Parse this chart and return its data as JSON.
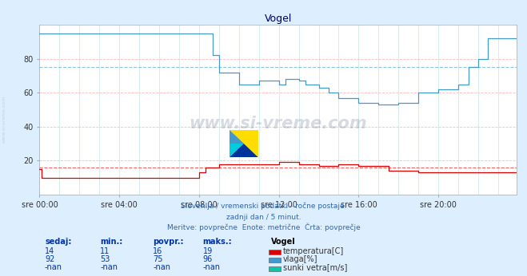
{
  "title": "Vogel",
  "bg_color": "#ddeeff",
  "plot_bg_color": "#ffffff",
  "xlabel_times": [
    "sre 00:00",
    "sre 04:00",
    "sre 08:00",
    "sre 12:00",
    "sre 16:00",
    "sre 20:00"
  ],
  "ylim": [
    0,
    100
  ],
  "xlim": [
    0,
    287
  ],
  "subtitle1": "Slovenija / vremenski podatki - ročne postaje.",
  "subtitle2": "zadnji dan / 5 minut.",
  "subtitle3": "Meritve: povprečne  Enote: metrične  Črta: povprečje",
  "table_headers": [
    "sedaj:",
    "min.:",
    "povpr.:",
    "maks.:"
  ],
  "table_data": [
    [
      "14",
      "11",
      "16",
      "19"
    ],
    [
      "92",
      "53",
      "75",
      "96"
    ],
    [
      "-nan",
      "-nan",
      "-nan",
      "-nan"
    ]
  ],
  "legend_station": "Vogel",
  "legend_items": [
    {
      "label": "temperatura[C]",
      "color": "#dd0000"
    },
    {
      "label": "vlaga[%]",
      "color": "#4499cc"
    },
    {
      "label": "sunki vetra[m/s]",
      "color": "#00ccaa"
    }
  ],
  "hline_temp_avg": 16,
  "hline_vlaga_avg": 75,
  "watermark_text": "www.si-vreme.com",
  "side_text": "www.si-vreme.com"
}
